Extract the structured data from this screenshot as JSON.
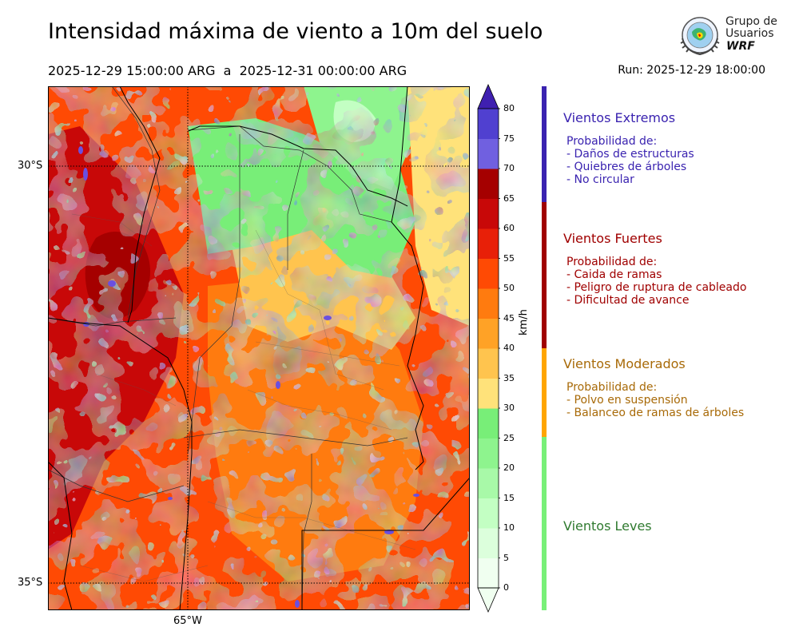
{
  "header": {
    "title": "Intensidad máxima de viento a 10m del suelo",
    "period": "2025-12-29 15:00:00 ARG  a  2025-12-31 00:00:00 ARG",
    "run": "Run: 2025-12-29 18:00:00"
  },
  "logo": {
    "line1": "Grupo de",
    "line2": "Usuarios",
    "line3": "WRF"
  },
  "map": {
    "lat_labels": [
      "30°S",
      "35°S"
    ],
    "lon_labels": [
      "65°W"
    ],
    "gridlines": "dotted"
  },
  "colorbar": {
    "unit": "km/h",
    "ticks": [
      "0",
      "5",
      "10",
      "15",
      "20",
      "25",
      "30",
      "35",
      "40",
      "45",
      "50",
      "55",
      "60",
      "65",
      "70",
      "75",
      "80"
    ],
    "colors": [
      "#f0fff0",
      "#dcffdc",
      "#c3ffc3",
      "#a8f9a8",
      "#8ef48e",
      "#78ee78",
      "#ffe27a",
      "#ffc44e",
      "#ffa226",
      "#ff7b0f",
      "#ff4a04",
      "#e82008",
      "#c80808",
      "#a50000",
      "#7060e0",
      "#5040d0",
      "#3f20b0"
    ],
    "extend": "both"
  },
  "categories": [
    {
      "title": "Vientos Extremos",
      "color": "#3a23b0",
      "text": "#3a23b0",
      "lines": [
        "Probabilidad de:",
        "- Daños de estructuras",
        "- Quiebres de árboles",
        "- No circular"
      ]
    },
    {
      "title": "Vientos Fuertes",
      "color": "#a00000",
      "text": "#a00000",
      "lines": [
        "Probabilidad de:",
        "- Caida de ramas",
        "- Peligro de ruptura de cableado",
        "- Dificultad de avance"
      ]
    },
    {
      "title": "Vientos Moderados",
      "color": "#ffa500",
      "text": "#a86a08",
      "lines": [
        "Probabilidad de:",
        "- Polvo en suspensión",
        "- Balanceo de ramas de árboles"
      ]
    },
    {
      "title": "Vientos Leves",
      "color": "#78f078",
      "text": "#2f7a2f",
      "lines": []
    }
  ]
}
